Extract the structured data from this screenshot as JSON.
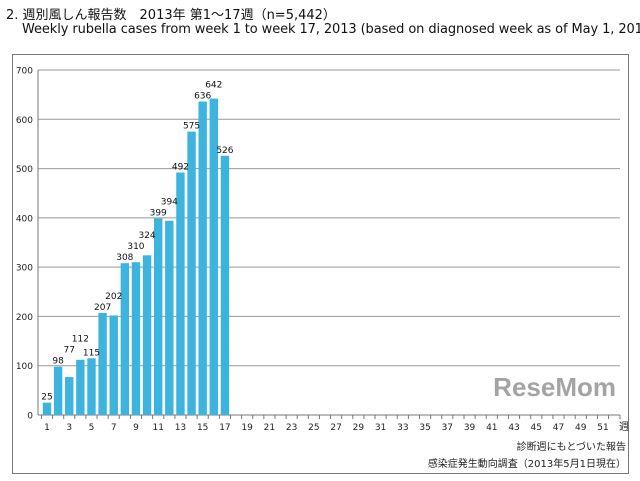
{
  "chart_data": {
    "type": "bar",
    "title": "2. 週別風しん報告数　2013年 第1～17週（n=5,442）",
    "subtitle": "Weekly rubella cases from week 1 to week 17, 2013 (based on diagnosed week as of May 1, 2013).",
    "xlabel": "週",
    "ylabel": "",
    "x": [
      1,
      2,
      3,
      4,
      5,
      6,
      7,
      8,
      9,
      10,
      11,
      12,
      13,
      14,
      15,
      16,
      17
    ],
    "values": [
      25,
      98,
      77,
      112,
      115,
      207,
      202,
      308,
      310,
      324,
      399,
      394,
      492,
      575,
      636,
      642,
      526
    ],
    "xlim": [
      1,
      52
    ],
    "x_tick_labels": [
      "1",
      "3",
      "5",
      "7",
      "9",
      "11",
      "13",
      "15",
      "17",
      "19",
      "21",
      "23",
      "25",
      "27",
      "29",
      "31",
      "33",
      "35",
      "37",
      "39",
      "41",
      "43",
      "45",
      "47",
      "49",
      "51"
    ],
    "ylim": [
      0,
      700
    ],
    "y_tick_labels": [
      "0",
      "100",
      "200",
      "300",
      "400",
      "500",
      "600",
      "700"
    ],
    "grid": true,
    "bar_color": "#3db4de",
    "data_labels": true
  },
  "footnotes": [
    "診断週にもとづいた報告",
    "感染症発生動向調査（2013年5月1日現在）"
  ],
  "watermark": "ReseMom"
}
